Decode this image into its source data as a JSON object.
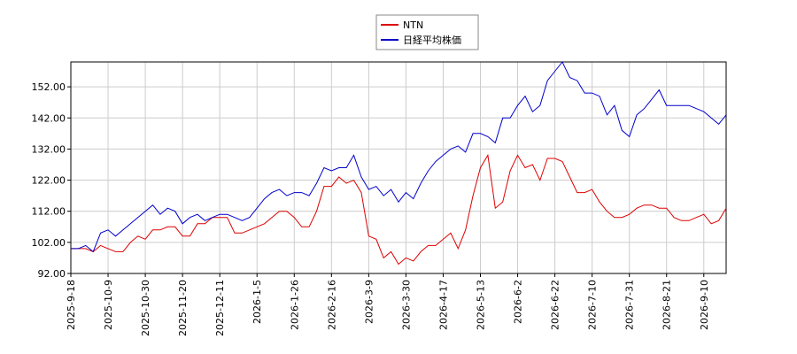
{
  "chart_data": {
    "type": "line",
    "categories": [
      "2025-9-18",
      null,
      null,
      null,
      null,
      "2025-10-9",
      null,
      null,
      null,
      null,
      "2025-10-30",
      null,
      null,
      null,
      null,
      "2025-11-20",
      null,
      null,
      null,
      null,
      "2025-12-11",
      null,
      null,
      null,
      null,
      "2026-1-5",
      null,
      null,
      null,
      null,
      "2026-1-26",
      null,
      null,
      null,
      null,
      "2026-2-16",
      null,
      null,
      null,
      null,
      "2026-3-9",
      null,
      null,
      null,
      null,
      "2026-3-30",
      null,
      null,
      null,
      null,
      "2026-4-17",
      null,
      null,
      null,
      null,
      "2026-5-13",
      null,
      null,
      null,
      null,
      "2026-6-2",
      null,
      null,
      null,
      null,
      "2026-6-22",
      null,
      null,
      null,
      null,
      "2026-7-10",
      null,
      null,
      null,
      null,
      "2026-7-31",
      null,
      null,
      null,
      null,
      "2026-8-21",
      null,
      null,
      null,
      null,
      "2026-9-10",
      null,
      null,
      null
    ],
    "series": [
      {
        "name": "NTN",
        "color": "#dd0000",
        "values": [
          100,
          100,
          100,
          99,
          101,
          100,
          99,
          99,
          102,
          104,
          103,
          106,
          106,
          107,
          107,
          104,
          104,
          108,
          108,
          110,
          110,
          110,
          105,
          105,
          106,
          107,
          108,
          110,
          112,
          112,
          110,
          107,
          107,
          112,
          120,
          120,
          123,
          121,
          122,
          118,
          104,
          103,
          97,
          99,
          95,
          97,
          96,
          99,
          101,
          101,
          103,
          105,
          100,
          106,
          117,
          126,
          130,
          113,
          115,
          125,
          130,
          126,
          127,
          122,
          129,
          129,
          128,
          123,
          118,
          118,
          119,
          115,
          112,
          110,
          110,
          111,
          113,
          114,
          114,
          113,
          113,
          110,
          109,
          109,
          110,
          111,
          108,
          109,
          113
        ]
      },
      {
        "name": "日経平均株価",
        "color": "#0000cc",
        "values": [
          100,
          100,
          101,
          99,
          105,
          106,
          104,
          106,
          108,
          110,
          112,
          114,
          111,
          113,
          112,
          108,
          110,
          111,
          109,
          110,
          111,
          111,
          110,
          109,
          110,
          113,
          116,
          118,
          119,
          117,
          118,
          118,
          117,
          121,
          126,
          125,
          126,
          126,
          130,
          123,
          119,
          120,
          117,
          119,
          115,
          118,
          116,
          121,
          125,
          128,
          130,
          132,
          133,
          131,
          137,
          137,
          136,
          134,
          142,
          142,
          146,
          149,
          144,
          146,
          154,
          157,
          160,
          155,
          154,
          150,
          150,
          149,
          143,
          146,
          138,
          136,
          143,
          145,
          148,
          151,
          146,
          146,
          146,
          146,
          145,
          144,
          142,
          140,
          143
        ]
      }
    ],
    "ylim": [
      92,
      160
    ],
    "yticks": [
      {
        "value": 92,
        "label": "92.00"
      },
      {
        "value": 102,
        "label": "102.00"
      },
      {
        "value": 112,
        "label": "112.00"
      },
      {
        "value": 122,
        "label": "122.00"
      },
      {
        "value": 132,
        "label": "132.00"
      },
      {
        "value": 142,
        "label": "142.00"
      },
      {
        "value": 152,
        "label": "152.00"
      }
    ],
    "grid": true,
    "legend": "top"
  }
}
